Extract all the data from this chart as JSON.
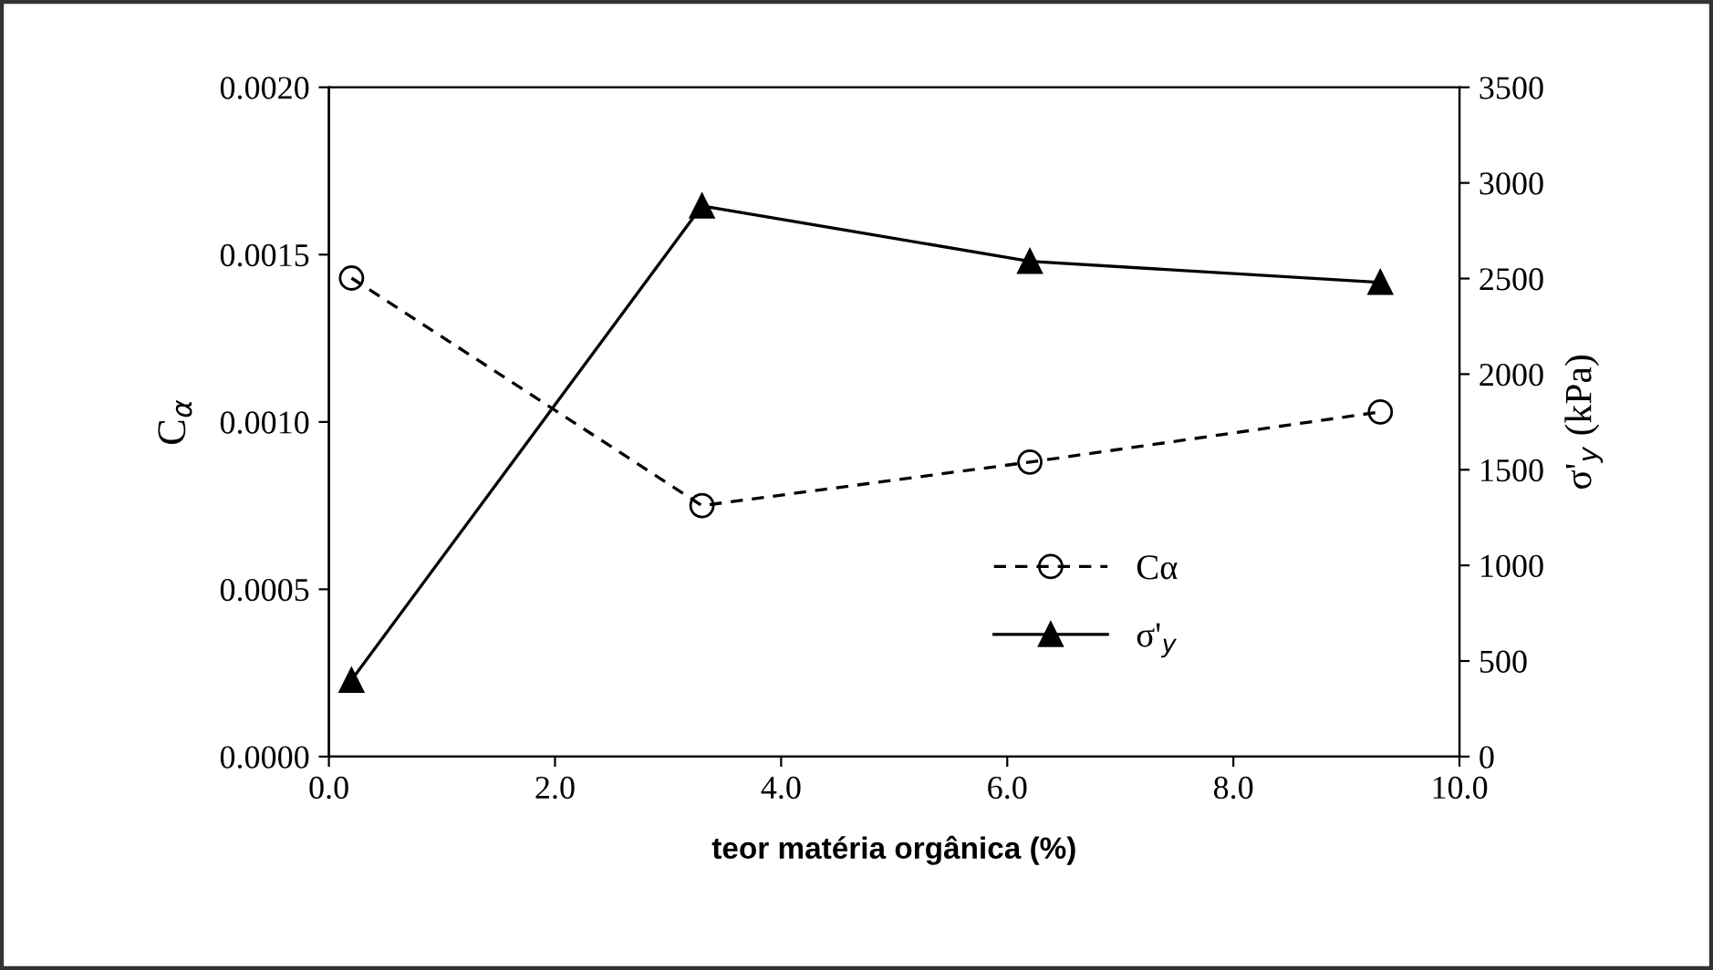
{
  "chart_data": {
    "type": "line",
    "xlabel": "teor matéria orgânica (%)",
    "ylabel": "C$_{α}$",
    "y2label": "σ'$_{y}$ (kPa)",
    "x": [
      0.2,
      3.3,
      6.2,
      9.3
    ],
    "series": [
      {
        "name": "Cα",
        "color": "#000000",
        "values": [
          0.00143,
          0.00075,
          0.00088,
          0.00103
        ],
        "marker": "circle",
        "line_style": "dashed"
      },
      {
        "name": "σ'$_{y}$",
        "color": "#000000",
        "values": [
          400,
          2880,
          2590,
          2480
        ],
        "marker": "triangle",
        "line_style": "solid",
        "axis": "y2"
      }
    ],
    "xlim": [
      0,
      10
    ],
    "xticks": [
      {
        "value": 0,
        "label": "0.0"
      },
      {
        "value": 2,
        "label": "2.0"
      },
      {
        "value": 4,
        "label": "4.0"
      },
      {
        "value": 6,
        "label": "6.0"
      },
      {
        "value": 8,
        "label": "8.0"
      },
      {
        "value": 10,
        "label": "10.0"
      }
    ],
    "ylim": [
      0,
      0.002
    ],
    "yticks": [
      {
        "value": 0,
        "label": "0.0000"
      },
      {
        "value": 0.0005,
        "label": "0.0005"
      },
      {
        "value": 0.001,
        "label": "0.0010"
      },
      {
        "value": 0.0015,
        "label": "0.0015"
      },
      {
        "value": 0.002,
        "label": "0.0020"
      }
    ],
    "y2lim": [
      0,
      3500
    ],
    "y2ticks": [
      0,
      500,
      1000,
      1500,
      2000,
      2500,
      3000,
      3500
    ],
    "legend": "bottom right",
    "grid": false
  }
}
